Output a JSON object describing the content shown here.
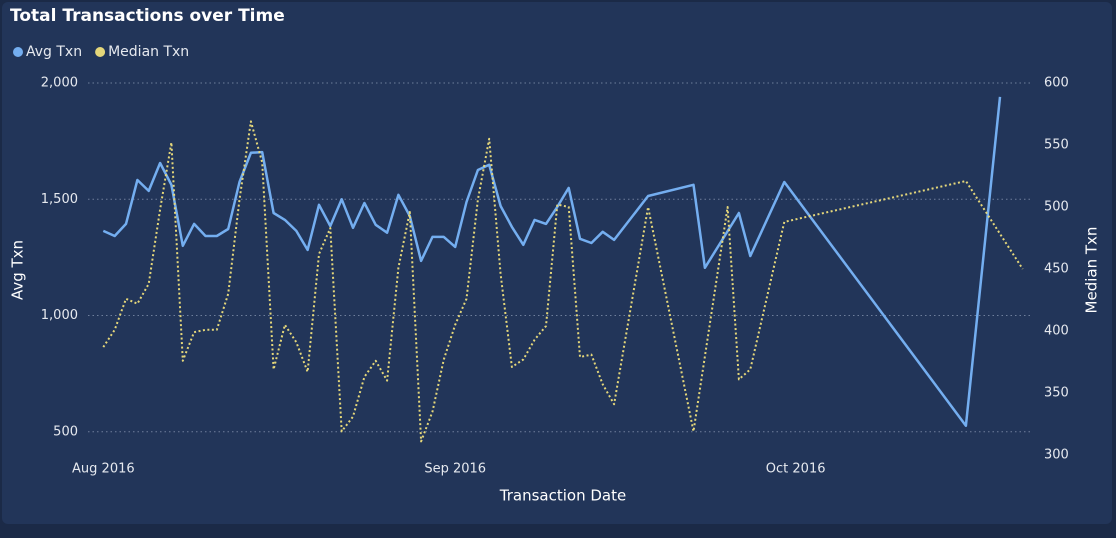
{
  "chart_data": {
    "type": "line",
    "title": "Total Transactions over Time",
    "x_label": "Transaction Date",
    "y_label": "Avg Txn",
    "y2_label": "Median Txn",
    "legend": "top-left",
    "grid": true,
    "xlim": [
      0,
      83
    ],
    "xticks": [
      {
        "value": 1,
        "label": "Aug 2016"
      },
      {
        "value": 32,
        "label": "Sep 2016"
      },
      {
        "value": 62,
        "label": "Oct 2016"
      }
    ],
    "ylim": [
      400,
      2000
    ],
    "yticks": [
      500,
      {
        "value": 1000,
        "label": "1,000"
      },
      {
        "value": 1500,
        "label": "1,500"
      },
      {
        "value": 2000,
        "label": "2,000"
      }
    ],
    "y2lim": [
      300,
      600
    ],
    "y2ticks": [
      300,
      350,
      400,
      450,
      500,
      550,
      600
    ],
    "series": [
      {
        "name": "Avg Txn",
        "color": "#74aef0",
        "x": [
          1,
          2,
          3,
          4,
          5,
          6,
          7,
          8,
          9,
          10,
          11,
          12,
          13,
          14,
          15,
          16,
          17,
          18,
          19,
          20,
          21,
          22,
          23,
          24,
          25,
          26,
          27,
          28,
          29,
          30,
          31,
          32,
          33,
          34,
          35,
          36,
          37,
          38,
          39,
          40,
          41,
          42,
          43,
          44,
          45,
          46,
          49,
          53,
          54,
          57,
          58,
          61,
          77,
          80
        ],
        "values": [
          1364,
          1342,
          1394,
          1583,
          1536,
          1656,
          1562,
          1300,
          1394,
          1342,
          1342,
          1372,
          1574,
          1700,
          1703,
          1441,
          1411,
          1364,
          1282,
          1476,
          1385,
          1500,
          1377,
          1484,
          1390,
          1356,
          1519,
          1428,
          1235,
          1338,
          1338,
          1295,
          1488,
          1626,
          1648,
          1471,
          1381,
          1304,
          1411,
          1394,
          1467,
          1549,
          1330,
          1312,
          1360,
          1325,
          1514,
          1562,
          1205,
          1441,
          1256,
          1574,
          526,
          1940
        ]
      },
      {
        "name": "Median Txn",
        "color": "#e5d77a",
        "axis": "y2",
        "x": [
          1,
          2,
          3,
          4,
          5,
          6,
          7,
          8,
          9,
          10,
          11,
          12,
          13,
          14,
          15,
          16,
          17,
          18,
          19,
          20,
          21,
          22,
          23,
          24,
          25,
          26,
          27,
          28,
          29,
          30,
          31,
          32,
          33,
          34,
          35,
          36,
          37,
          38,
          39,
          40,
          41,
          42,
          43,
          44,
          45,
          46,
          49,
          53,
          56,
          57,
          58,
          61,
          77,
          82
        ],
        "values": [
          387,
          401,
          426,
          422,
          438,
          498,
          552,
          376,
          399,
          401,
          401,
          430,
          506,
          569,
          536,
          369,
          405,
          391,
          367,
          462,
          483,
          319,
          331,
          363,
          376,
          360,
          451,
          496,
          311,
          335,
          377,
          405,
          426,
          506,
          555,
          446,
          371,
          377,
          393,
          404,
          502,
          500,
          379,
          381,
          357,
          341,
          500,
          319,
          500,
          361,
          369,
          488,
          521,
          450
        ]
      }
    ]
  }
}
